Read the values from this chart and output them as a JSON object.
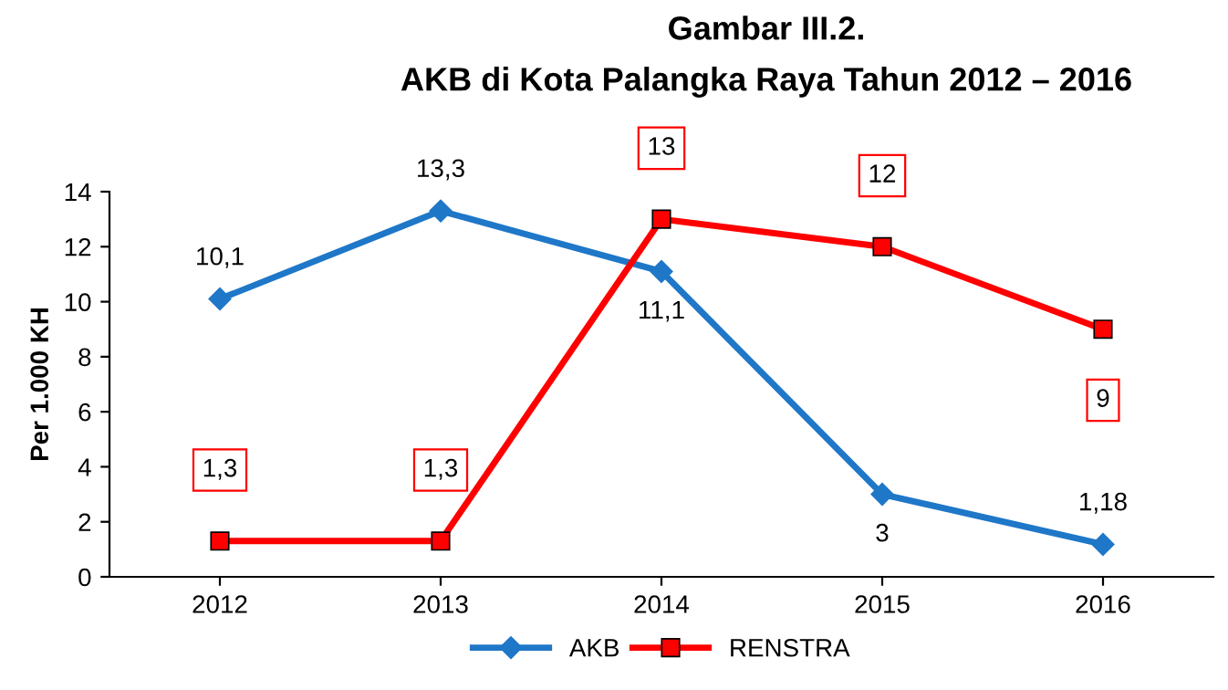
{
  "chart_data": {
    "type": "line",
    "title": "Gambar III.2.",
    "subtitle": "AKB di Kota Palangka Raya Tahun 2012 – 2016",
    "ylabel": "Per 1.000 KH",
    "categories": [
      "2012",
      "2013",
      "2014",
      "2015",
      "2016"
    ],
    "series": [
      {
        "name": "AKB",
        "color": "#1f77c8",
        "marker": "diamond",
        "values": [
          10.1,
          13.3,
          11.1,
          3,
          1.18
        ],
        "value_labels": [
          "10,1",
          "13,3",
          "11,1",
          "3",
          "1,18"
        ]
      },
      {
        "name": "RENSTRA",
        "color": "#ff0000",
        "marker": "square",
        "values": [
          1.3,
          1.3,
          13,
          12,
          9
        ],
        "value_labels": [
          "1,3",
          "1,3",
          "13",
          "12",
          "9"
        ]
      }
    ],
    "ylim": [
      0,
      14
    ],
    "yticks": [
      0,
      2,
      4,
      6,
      8,
      10,
      12,
      14
    ],
    "grid": false,
    "legend": "bottom",
    "line_style": "solid"
  }
}
